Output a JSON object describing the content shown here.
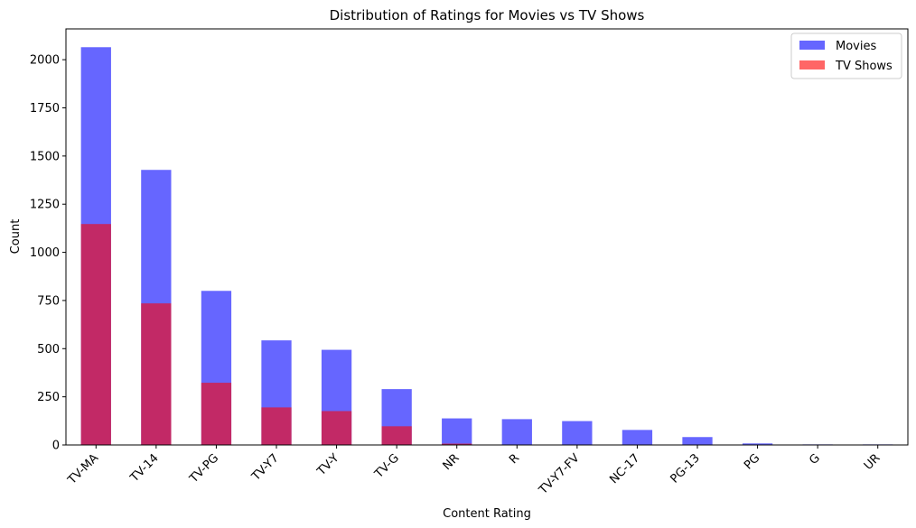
{
  "chart_data": {
    "type": "bar",
    "title": "Distribution of Ratings for Movies vs TV Shows",
    "xlabel": "Content Rating",
    "ylabel": "Count",
    "ylim": [
      0,
      2160
    ],
    "yticks": [
      0,
      250,
      500,
      750,
      1000,
      1250,
      1500,
      1750,
      2000
    ],
    "categories": [
      "TV-MA",
      "TV-14",
      "TV-PG",
      "TV-Y7",
      "TV-Y",
      "TV-G",
      "NR",
      "R",
      "TV-Y7-FV",
      "NC-17",
      "PG-13",
      "PG",
      "G",
      "UR"
    ],
    "series": [
      {
        "name": "Movies",
        "color": "#0000ff",
        "opacity": 0.6,
        "values": [
          2065,
          1428,
          800,
          543,
          494,
          290,
          138,
          134,
          124,
          78,
          41,
          8,
          3,
          3
        ]
      },
      {
        "name": "TV Shows",
        "color": "#ff0000",
        "opacity": 0.6,
        "values": [
          1147,
          735,
          323,
          195,
          176,
          97,
          7,
          0,
          0,
          0,
          0,
          0,
          0,
          0
        ]
      }
    ],
    "legend_position": "top-right",
    "grid": false
  }
}
